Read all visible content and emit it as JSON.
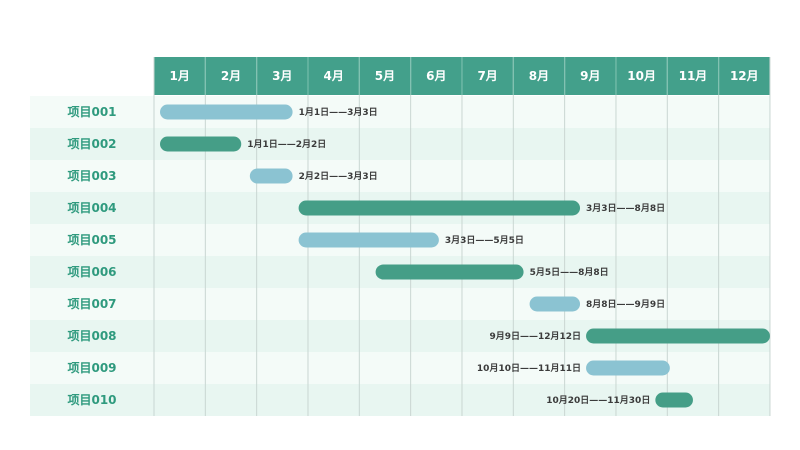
{
  "chart_data": {
    "type": "gantt",
    "months": [
      "1月",
      "2月",
      "3月",
      "4月",
      "5月",
      "6月",
      "7月",
      "8月",
      "9月",
      "10月",
      "11月",
      "12月"
    ],
    "tasks": [
      {
        "name": "项目001",
        "start": 1.0,
        "end": 3.7,
        "label": "1月1日——3月3日",
        "label_pos": "right",
        "color": "#8bc3d2"
      },
      {
        "name": "项目002",
        "start": 1.0,
        "end": 2.7,
        "label": "1月1日——2月2日",
        "label_pos": "right",
        "color": "#459e87"
      },
      {
        "name": "项目003",
        "start": 2.75,
        "end": 3.7,
        "label": "2月2日——3月3日",
        "label_pos": "right",
        "color": "#8bc3d2"
      },
      {
        "name": "项目004",
        "start": 3.7,
        "end": 9.3,
        "label": "3月3日——8月8日",
        "label_pos": "right",
        "color": "#459e87"
      },
      {
        "name": "项目005",
        "start": 3.7,
        "end": 6.55,
        "label": "3月3日——5月5日",
        "label_pos": "right",
        "color": "#8bc3d2"
      },
      {
        "name": "项目006",
        "start": 5.2,
        "end": 8.2,
        "label": "5月5日——8月8日",
        "label_pos": "right",
        "color": "#459e87"
      },
      {
        "name": "项目007",
        "start": 8.2,
        "end": 9.3,
        "label": "8月8日——9月9日",
        "label_pos": "right",
        "color": "#8bc3d2"
      },
      {
        "name": "项目008",
        "start": 9.3,
        "end": 13.0,
        "label": "9月9日——12月12日",
        "label_pos": "left",
        "color": "#459e87"
      },
      {
        "name": "项目009",
        "start": 9.3,
        "end": 11.05,
        "label": "10月10日——11月11日",
        "label_pos": "left",
        "color": "#8bc3d2"
      },
      {
        "name": "项目010",
        "start": 10.65,
        "end": 11.5,
        "label": "10月20日——11月30日",
        "label_pos": "left",
        "color": "#459e87"
      }
    ]
  },
  "colors": {
    "header_bg": "#43a08b",
    "header_text": "#ffffff",
    "row_light": "#f4fbf8",
    "row_dark": "#e8f6f1",
    "grid_line": "#c9d6d2",
    "task_text": "#2f9a7e",
    "date_text": "#3b3b3b"
  }
}
